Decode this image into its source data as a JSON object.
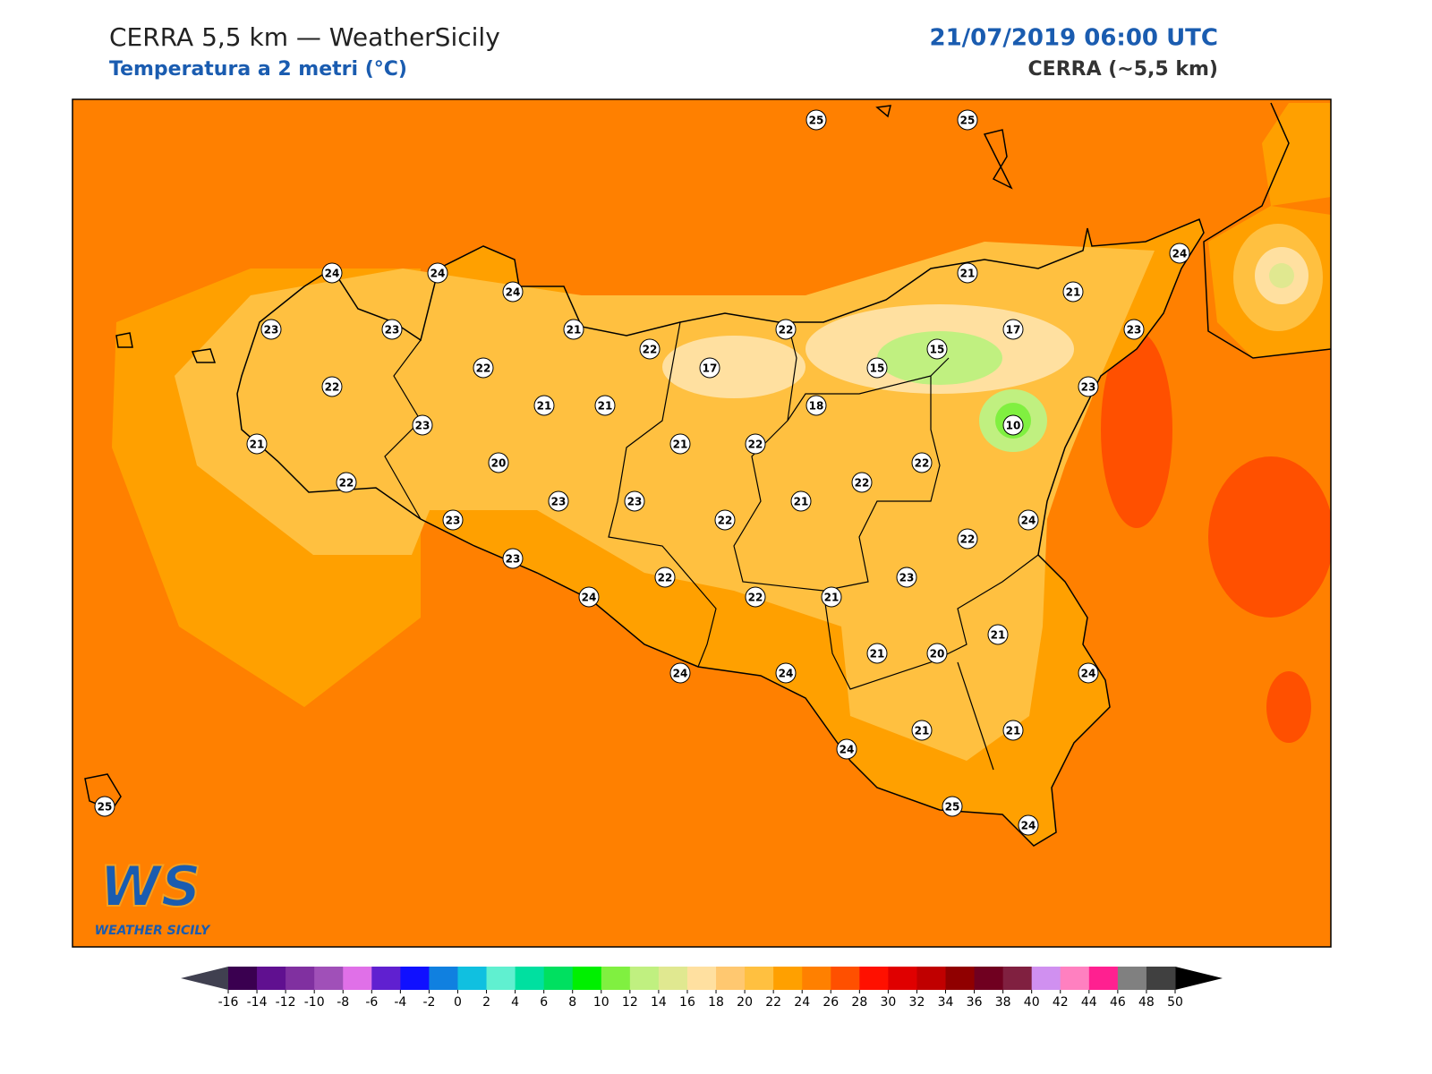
{
  "header": {
    "title": "CERRA 5,5 km — WeatherSicily",
    "subtitle": "Temperatura a 2 metri (°C)",
    "datetime": "21/07/2019 06:00 UTC",
    "model": "CERRA (~5,5 km)"
  },
  "logo": {
    "mark": "WS",
    "text": "WEATHER SICILY"
  },
  "stations": [
    25,
    25,
    24,
    24,
    24,
    21,
    24,
    21,
    23,
    23,
    21,
    22,
    22,
    17,
    23,
    15,
    15,
    17,
    22,
    22,
    23,
    21,
    21,
    18,
    10,
    23,
    21,
    21,
    22,
    20,
    22,
    22,
    22,
    23,
    23,
    21,
    24,
    23,
    22,
    22,
    23,
    23,
    22,
    24,
    22,
    21,
    21,
    21,
    20,
    24,
    24,
    24,
    21,
    21,
    24,
    25,
    25,
    24
  ],
  "colorbar": {
    "ticks": [
      -16,
      -14,
      -12,
      -10,
      -8,
      -6,
      -4,
      -2,
      0,
      2,
      4,
      6,
      8,
      10,
      12,
      14,
      16,
      18,
      20,
      22,
      24,
      26,
      28,
      30,
      32,
      34,
      36,
      38,
      40,
      42,
      44,
      46,
      48,
      50
    ],
    "colors": [
      "#3a0050",
      "#601090",
      "#8030a0",
      "#a050b8",
      "#e070e8",
      "#6020d0",
      "#1010ff",
      "#1080e0",
      "#10c0e0",
      "#60f0d0",
      "#00e0a0",
      "#00e060",
      "#00f000",
      "#80f040",
      "#c0f080",
      "#e0e890",
      "#ffe0a0",
      "#ffc870",
      "#ffc040",
      "#ffa000",
      "#ff8000",
      "#ff5000",
      "#ff1000",
      "#e00000",
      "#c00000",
      "#900000",
      "#700020",
      "#802040",
      "#d090f0",
      "#ff80c0",
      "#ff2090",
      "#808080",
      "#404040"
    ],
    "under": "#404050",
    "over": "#000000"
  }
}
